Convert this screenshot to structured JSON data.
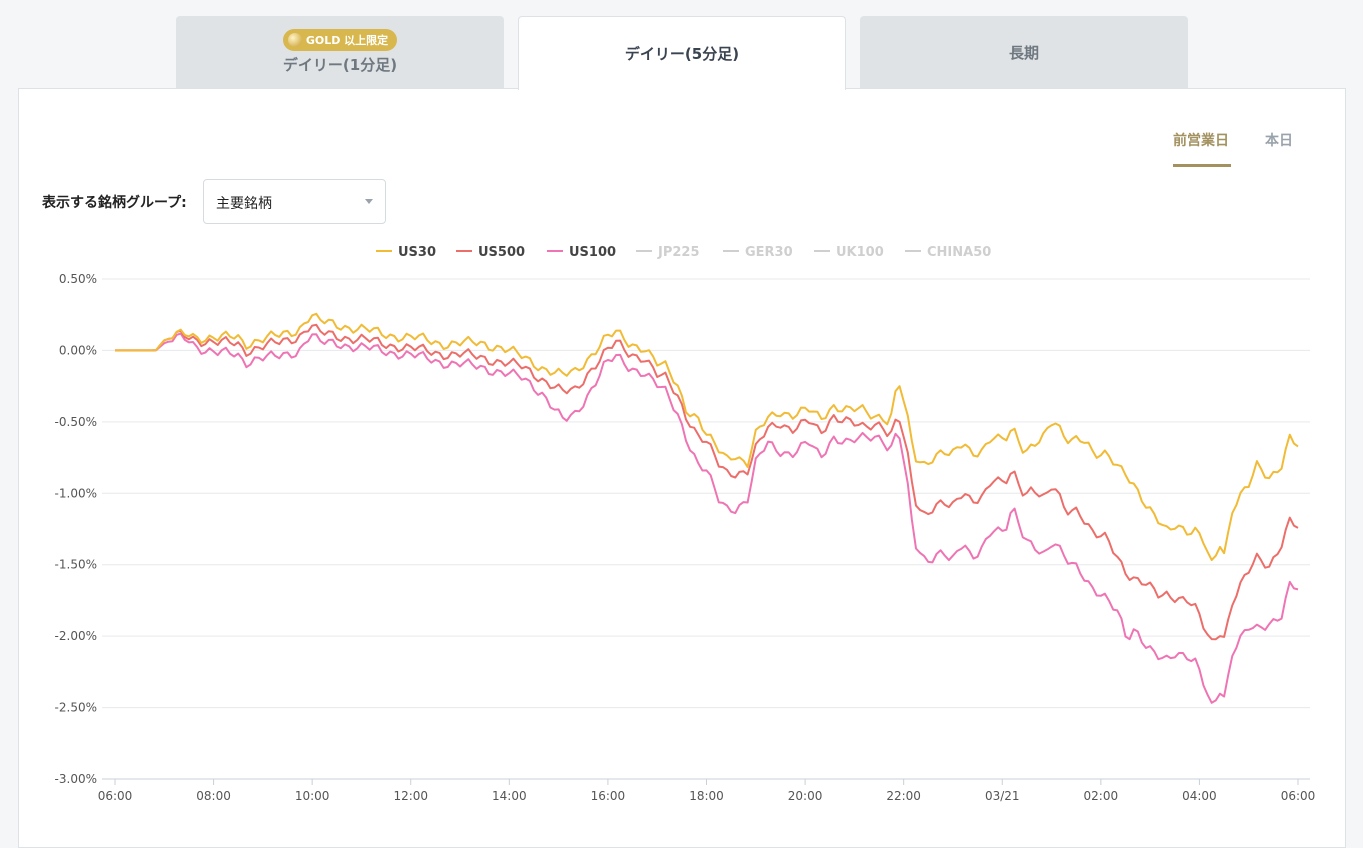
{
  "tabs": {
    "tab1_badge": "GOLD 以上限定",
    "tab1_label": "デイリー(1分足)",
    "tab2_label": "デイリー(5分足)",
    "tab3_label": "長期"
  },
  "period": {
    "prev": "前営業日",
    "today": "本日"
  },
  "filter": {
    "label": "表示する銘柄グループ:",
    "value": "主要銘柄"
  },
  "colors": {
    "accent": "#a39160",
    "gold_badge": "#d8b74e",
    "US30": "#f1bb35",
    "US500": "#ec6e6a",
    "US100": "#ee74b4",
    "inactive": "#cfcfcf"
  },
  "chart_data": {
    "type": "line",
    "ylim": [
      -3.0,
      0.5
    ],
    "yticks": [
      "0.50%",
      "0.00%",
      "-0.50%",
      "-1.00%",
      "-1.50%",
      "-2.00%",
      "-2.50%",
      "-3.00%"
    ],
    "xticks": [
      "06:00",
      "08:00",
      "10:00",
      "12:00",
      "14:00",
      "16:00",
      "18:00",
      "20:00",
      "22:00",
      "03/21",
      "02:00",
      "04:00",
      "06:00"
    ],
    "legend_position": "top-center",
    "grid": true,
    "series": [
      {
        "name": "US30",
        "visible": true,
        "anchors": [
          [
            0,
            0.0
          ],
          [
            1.0,
            0.0
          ],
          [
            1.2,
            0.07
          ],
          [
            1.5,
            0.1
          ],
          [
            1.8,
            0.12
          ],
          [
            2.0,
            0.1
          ],
          [
            2.5,
            0.08
          ],
          [
            3.0,
            0.1
          ],
          [
            3.2,
            0.05
          ],
          [
            3.5,
            0.07
          ],
          [
            4.0,
            0.1
          ],
          [
            4.5,
            0.15
          ],
          [
            4.8,
            0.25
          ],
          [
            5.0,
            0.2
          ],
          [
            5.5,
            0.18
          ],
          [
            6.0,
            0.15
          ],
          [
            6.5,
            0.12
          ],
          [
            7.0,
            0.1
          ],
          [
            7.5,
            0.08
          ],
          [
            8.0,
            0.05
          ],
          [
            8.5,
            0.05
          ],
          [
            9.0,
            0.05
          ],
          [
            9.5,
            0.02
          ],
          [
            10.0,
            -0.05
          ],
          [
            10.5,
            -0.12
          ],
          [
            11.0,
            -0.18
          ],
          [
            11.3,
            -0.15
          ],
          [
            11.6,
            -0.05
          ],
          [
            12.0,
            0.08
          ],
          [
            12.3,
            0.12
          ],
          [
            12.6,
            0.05
          ],
          [
            13.0,
            0.02
          ],
          [
            13.3,
            -0.1
          ],
          [
            13.5,
            -0.12
          ],
          [
            13.8,
            -0.25
          ],
          [
            14.0,
            -0.4
          ],
          [
            14.3,
            -0.48
          ],
          [
            14.5,
            -0.6
          ],
          [
            14.8,
            -0.7
          ],
          [
            15.0,
            -0.75
          ],
          [
            15.2,
            -0.72
          ],
          [
            15.5,
            -0.8
          ],
          [
            15.7,
            -0.6
          ],
          [
            16.0,
            -0.48
          ],
          [
            16.3,
            -0.42
          ],
          [
            16.6,
            -0.45
          ],
          [
            17.0,
            -0.42
          ],
          [
            17.3,
            -0.48
          ],
          [
            17.6,
            -0.38
          ],
          [
            18.0,
            -0.42
          ],
          [
            18.3,
            -0.42
          ],
          [
            18.6,
            -0.46
          ],
          [
            18.8,
            -0.45
          ],
          [
            19.0,
            -0.5
          ],
          [
            19.2,
            -0.2
          ],
          [
            19.4,
            -0.45
          ],
          [
            19.6,
            -0.75
          ],
          [
            19.8,
            -0.8
          ],
          [
            20.0,
            -0.75
          ],
          [
            20.3,
            -0.7
          ],
          [
            20.5,
            -0.75
          ],
          [
            20.8,
            -0.65
          ],
          [
            21.0,
            -0.72
          ],
          [
            21.3,
            -0.68
          ],
          [
            21.5,
            -0.6
          ],
          [
            21.8,
            -0.65
          ],
          [
            22.0,
            -0.55
          ],
          [
            22.3,
            -0.7
          ],
          [
            22.5,
            -0.65
          ],
          [
            22.8,
            -0.6
          ],
          [
            23.0,
            -0.5
          ],
          [
            23.3,
            -0.62
          ],
          [
            23.6,
            -0.6
          ],
          [
            23.8,
            -0.62
          ],
          [
            24.0,
            -0.75
          ],
          [
            24.3,
            -0.74
          ],
          [
            24.6,
            -0.8
          ],
          [
            24.8,
            -0.85
          ],
          [
            25.0,
            -0.95
          ],
          [
            25.3,
            -1.12
          ],
          [
            25.6,
            -1.2
          ],
          [
            25.8,
            -1.25
          ],
          [
            26.0,
            -1.2
          ],
          [
            26.3,
            -1.28
          ],
          [
            26.5,
            -1.28
          ],
          [
            26.7,
            -1.35
          ],
          [
            26.9,
            -1.5
          ],
          [
            27.1,
            -1.32
          ],
          [
            27.2,
            -1.42
          ],
          [
            27.4,
            -1.1
          ],
          [
            27.8,
            -0.95
          ],
          [
            28.0,
            -0.8
          ],
          [
            28.3,
            -0.88
          ],
          [
            28.6,
            -0.8
          ],
          [
            28.8,
            -0.62
          ],
          [
            29.0,
            -0.68
          ]
        ]
      },
      {
        "name": "US500",
        "visible": true,
        "anchors": [
          [
            0,
            0.0
          ],
          [
            1.0,
            0.0
          ],
          [
            1.2,
            0.07
          ],
          [
            1.5,
            0.1
          ],
          [
            1.8,
            0.1
          ],
          [
            2.0,
            0.08
          ],
          [
            2.5,
            0.05
          ],
          [
            3.0,
            0.05
          ],
          [
            3.2,
            0.0
          ],
          [
            3.5,
            0.02
          ],
          [
            4.0,
            0.05
          ],
          [
            4.5,
            0.1
          ],
          [
            4.8,
            0.18
          ],
          [
            5.0,
            0.12
          ],
          [
            5.5,
            0.1
          ],
          [
            6.0,
            0.08
          ],
          [
            6.5,
            0.05
          ],
          [
            7.0,
            0.03
          ],
          [
            7.5,
            0.0
          ],
          [
            8.0,
            -0.02
          ],
          [
            8.5,
            -0.03
          ],
          [
            9.0,
            -0.05
          ],
          [
            9.5,
            -0.08
          ],
          [
            10.0,
            -0.12
          ],
          [
            10.5,
            -0.2
          ],
          [
            11.0,
            -0.3
          ],
          [
            11.3,
            -0.28
          ],
          [
            11.6,
            -0.15
          ],
          [
            12.0,
            -0.02
          ],
          [
            12.3,
            0.05
          ],
          [
            12.6,
            -0.02
          ],
          [
            13.0,
            -0.05
          ],
          [
            13.3,
            -0.18
          ],
          [
            13.5,
            -0.2
          ],
          [
            13.8,
            -0.32
          ],
          [
            14.0,
            -0.45
          ],
          [
            14.3,
            -0.6
          ],
          [
            14.5,
            -0.65
          ],
          [
            14.8,
            -0.8
          ],
          [
            15.0,
            -0.85
          ],
          [
            15.2,
            -0.85
          ],
          [
            15.5,
            -0.85
          ],
          [
            15.7,
            -0.7
          ],
          [
            16.0,
            -0.55
          ],
          [
            16.3,
            -0.5
          ],
          [
            16.6,
            -0.55
          ],
          [
            17.0,
            -0.5
          ],
          [
            17.3,
            -0.58
          ],
          [
            17.6,
            -0.45
          ],
          [
            18.0,
            -0.5
          ],
          [
            18.3,
            -0.55
          ],
          [
            18.6,
            -0.52
          ],
          [
            18.8,
            -0.5
          ],
          [
            19.0,
            -0.6
          ],
          [
            19.2,
            -0.45
          ],
          [
            19.4,
            -0.7
          ],
          [
            19.6,
            -1.05
          ],
          [
            19.8,
            -1.15
          ],
          [
            20.0,
            -1.1
          ],
          [
            20.3,
            -1.05
          ],
          [
            20.5,
            -1.12
          ],
          [
            20.8,
            -1.0
          ],
          [
            21.0,
            -1.05
          ],
          [
            21.3,
            -1.0
          ],
          [
            21.5,
            -0.9
          ],
          [
            21.8,
            -0.95
          ],
          [
            22.0,
            -0.85
          ],
          [
            22.3,
            -1.0
          ],
          [
            22.5,
            -0.95
          ],
          [
            22.8,
            -1.05
          ],
          [
            23.0,
            -0.95
          ],
          [
            23.3,
            -1.12
          ],
          [
            23.6,
            -1.1
          ],
          [
            23.8,
            -1.2
          ],
          [
            24.0,
            -1.3
          ],
          [
            24.3,
            -1.32
          ],
          [
            24.6,
            -1.45
          ],
          [
            24.8,
            -1.55
          ],
          [
            25.0,
            -1.6
          ],
          [
            25.3,
            -1.65
          ],
          [
            25.6,
            -1.72
          ],
          [
            25.8,
            -1.7
          ],
          [
            26.0,
            -1.72
          ],
          [
            26.3,
            -1.75
          ],
          [
            26.5,
            -1.82
          ],
          [
            26.7,
            -1.95
          ],
          [
            26.9,
            -2.05
          ],
          [
            27.1,
            -1.95
          ],
          [
            27.2,
            -2.0
          ],
          [
            27.4,
            -1.75
          ],
          [
            27.8,
            -1.55
          ],
          [
            28.0,
            -1.45
          ],
          [
            28.3,
            -1.5
          ],
          [
            28.6,
            -1.35
          ],
          [
            28.8,
            -1.2
          ],
          [
            29.0,
            -1.25
          ]
        ]
      },
      {
        "name": "US100",
        "visible": true,
        "anchors": [
          [
            0,
            0.0
          ],
          [
            1.0,
            0.0
          ],
          [
            1.2,
            0.05
          ],
          [
            1.5,
            0.08
          ],
          [
            1.8,
            0.08
          ],
          [
            2.0,
            0.03
          ],
          [
            2.5,
            -0.02
          ],
          [
            3.0,
            -0.03
          ],
          [
            3.2,
            -0.08
          ],
          [
            3.5,
            -0.05
          ],
          [
            4.0,
            -0.05
          ],
          [
            4.5,
            0.0
          ],
          [
            4.8,
            0.12
          ],
          [
            5.0,
            0.05
          ],
          [
            5.5,
            0.05
          ],
          [
            6.0,
            0.02
          ],
          [
            6.5,
            0.0
          ],
          [
            7.0,
            -0.02
          ],
          [
            7.5,
            -0.05
          ],
          [
            8.0,
            -0.08
          ],
          [
            8.5,
            -0.1
          ],
          [
            9.0,
            -0.12
          ],
          [
            9.5,
            -0.15
          ],
          [
            10.0,
            -0.2
          ],
          [
            10.5,
            -0.3
          ],
          [
            11.0,
            -0.5
          ],
          [
            11.3,
            -0.45
          ],
          [
            11.6,
            -0.3
          ],
          [
            12.0,
            -0.1
          ],
          [
            12.3,
            -0.05
          ],
          [
            12.6,
            -0.12
          ],
          [
            13.0,
            -0.15
          ],
          [
            13.3,
            -0.25
          ],
          [
            13.5,
            -0.3
          ],
          [
            13.8,
            -0.45
          ],
          [
            14.0,
            -0.6
          ],
          [
            14.3,
            -0.8
          ],
          [
            14.5,
            -0.85
          ],
          [
            14.8,
            -1.05
          ],
          [
            15.0,
            -1.1
          ],
          [
            15.2,
            -1.1
          ],
          [
            15.5,
            -1.05
          ],
          [
            15.7,
            -0.8
          ],
          [
            16.0,
            -0.65
          ],
          [
            16.3,
            -0.7
          ],
          [
            16.6,
            -0.72
          ],
          [
            17.0,
            -0.65
          ],
          [
            17.3,
            -0.75
          ],
          [
            17.6,
            -0.6
          ],
          [
            18.0,
            -0.65
          ],
          [
            18.3,
            -0.62
          ],
          [
            18.6,
            -0.6
          ],
          [
            18.8,
            -0.6
          ],
          [
            19.0,
            -0.7
          ],
          [
            19.2,
            -0.55
          ],
          [
            19.4,
            -0.9
          ],
          [
            19.6,
            -1.35
          ],
          [
            19.8,
            -1.45
          ],
          [
            20.0,
            -1.45
          ],
          [
            20.3,
            -1.4
          ],
          [
            20.5,
            -1.5
          ],
          [
            20.8,
            -1.35
          ],
          [
            21.0,
            -1.45
          ],
          [
            21.3,
            -1.35
          ],
          [
            21.5,
            -1.25
          ],
          [
            21.8,
            -1.3
          ],
          [
            22.0,
            -1.1
          ],
          [
            22.3,
            -1.3
          ],
          [
            22.5,
            -1.35
          ],
          [
            22.8,
            -1.45
          ],
          [
            23.0,
            -1.35
          ],
          [
            23.3,
            -1.45
          ],
          [
            23.6,
            -1.5
          ],
          [
            23.8,
            -1.6
          ],
          [
            24.0,
            -1.7
          ],
          [
            24.3,
            -1.75
          ],
          [
            24.6,
            -1.82
          ],
          [
            24.8,
            -2.0
          ],
          [
            25.0,
            -1.95
          ],
          [
            25.3,
            -2.1
          ],
          [
            25.6,
            -2.15
          ],
          [
            25.8,
            -2.15
          ],
          [
            26.0,
            -2.1
          ],
          [
            26.3,
            -2.15
          ],
          [
            26.5,
            -2.2
          ],
          [
            26.7,
            -2.35
          ],
          [
            26.9,
            -2.5
          ],
          [
            27.1,
            -2.35
          ],
          [
            27.2,
            -2.42
          ],
          [
            27.4,
            -2.1
          ],
          [
            27.8,
            -1.95
          ],
          [
            28.0,
            -1.95
          ],
          [
            28.3,
            -1.9
          ],
          [
            28.6,
            -1.85
          ],
          [
            28.8,
            -1.65
          ],
          [
            29.0,
            -1.68
          ]
        ]
      },
      {
        "name": "JP225",
        "visible": false
      },
      {
        "name": "GER30",
        "visible": false
      },
      {
        "name": "UK100",
        "visible": false
      },
      {
        "name": "CHINA50",
        "visible": false
      }
    ]
  }
}
